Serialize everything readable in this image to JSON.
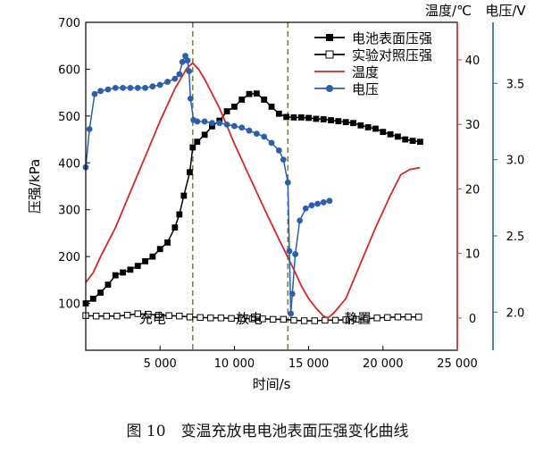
{
  "chart_data": {
    "type": "line",
    "caption": "图 10　变温充放电电池表面压强变化曲线",
    "xlabel": "时间/s",
    "xlim": [
      0,
      25000
    ],
    "x_ticks": [
      5000,
      10000,
      15000,
      20000,
      25000
    ],
    "x_tick_labels": [
      "5 000",
      "10 000",
      "15 000",
      "20 000",
      "25 000"
    ],
    "y_left": {
      "label": "压强/kPa",
      "lim": [
        0,
        700
      ],
      "ticks": [
        100,
        200,
        300,
        400,
        500,
        600,
        700
      ],
      "color": "#000000"
    },
    "y_temp": {
      "label": "温度/℃",
      "lim": [
        -5,
        45.8
      ],
      "ticks": [
        0,
        10,
        20,
        30,
        40
      ],
      "color": "#d62728"
    },
    "y_volt": {
      "label": "电压/V",
      "lim": [
        1.75,
        3.9
      ],
      "ticks": [
        2.0,
        2.5,
        3.0,
        3.5
      ],
      "tick_labels": [
        "2.0",
        "2.5",
        "3.0",
        "3.5"
      ],
      "color": "#2b5fad"
    },
    "legend_position": "top-right",
    "series": [
      {
        "name": "电池表面压强",
        "axis": "pressure",
        "color": "#000000",
        "marker": "filled-square",
        "x": [
          0,
          500,
          1000,
          1500,
          2000,
          2500,
          3000,
          3500,
          4000,
          4500,
          5000,
          5500,
          6000,
          6300,
          6600,
          7000,
          7200,
          7500,
          8000,
          8500,
          9000,
          9500,
          10000,
          10500,
          11000,
          11500,
          12000,
          12500,
          13000,
          13500,
          14000,
          14500,
          15000,
          15500,
          16000,
          16500,
          17000,
          17500,
          18000,
          18500,
          19000,
          19500,
          20000,
          20500,
          21000,
          21500,
          22000,
          22500
        ],
        "y": [
          100,
          110,
          123,
          140,
          160,
          166,
          172,
          180,
          190,
          200,
          216,
          230,
          262,
          290,
          330,
          380,
          433,
          445,
          460,
          478,
          490,
          510,
          520,
          535,
          547,
          548,
          535,
          520,
          505,
          498,
          497,
          497,
          496,
          494,
          493,
          491,
          489,
          487,
          485,
          480,
          476,
          473,
          466,
          461,
          456,
          450,
          447,
          445
        ]
      },
      {
        "name": "实验对照压强",
        "axis": "pressure",
        "color": "#000000",
        "marker": "hollow-square",
        "x": [
          0,
          700,
          1400,
          2100,
          2800,
          3500,
          4200,
          4900,
          5600,
          6300,
          7000,
          7700,
          8400,
          9100,
          9800,
          10500,
          11200,
          11900,
          12600,
          13300,
          14000,
          14700,
          15400,
          16100,
          16800,
          17500,
          18200,
          18900,
          19600,
          20300,
          21000,
          21700,
          22400
        ],
        "y": [
          74,
          73,
          73,
          73,
          75,
          78,
          77,
          75,
          74,
          73,
          71,
          70,
          69,
          69,
          68,
          68,
          67,
          67,
          66,
          66,
          64,
          63,
          63,
          64,
          64,
          65,
          66,
          67,
          69,
          70,
          71,
          71,
          71
        ]
      },
      {
        "name": "温度",
        "axis": "temperature",
        "color": "#d62728",
        "marker": "none",
        "x": [
          0,
          500,
          1000,
          2000,
          3000,
          4000,
          5000,
          6000,
          6800,
          7200,
          7600,
          8000,
          9000,
          10000,
          11000,
          12000,
          13000,
          14000,
          14500,
          15000,
          15500,
          16000,
          16300,
          16700,
          17500,
          18500,
          19500,
          20500,
          21200,
          21800,
          22500
        ],
        "y": [
          5.5,
          7.0,
          9.5,
          14,
          19.5,
          25,
          30.5,
          35.5,
          38.7,
          39.5,
          38.5,
          37,
          32.5,
          27,
          22,
          17,
          12.2,
          7.5,
          5.0,
          3.0,
          1.5,
          0.3,
          0.0,
          0.8,
          3.0,
          8.5,
          14,
          19,
          22.2,
          23,
          23.3
        ]
      },
      {
        "name": "电压",
        "axis": "voltage",
        "color": "#2b5fad",
        "marker": "filled-circle",
        "x": [
          0,
          250,
          600,
          1000,
          1500,
          2000,
          2500,
          3000,
          3500,
          4000,
          4500,
          5000,
          5500,
          6000,
          6300,
          6500,
          6700,
          6850,
          6950,
          7050,
          7250,
          7500,
          8000,
          8500,
          9000,
          9500,
          10000,
          10500,
          11000,
          11500,
          12000,
          12500,
          13000,
          13300,
          13600,
          13700,
          13800,
          13900,
          14100,
          14400,
          14800,
          15200,
          15600,
          16000,
          16400
        ],
        "y": [
          2.95,
          3.2,
          3.43,
          3.45,
          3.46,
          3.47,
          3.47,
          3.47,
          3.47,
          3.47,
          3.48,
          3.49,
          3.51,
          3.53,
          3.56,
          3.64,
          3.68,
          3.65,
          3.58,
          3.4,
          3.26,
          3.25,
          3.25,
          3.24,
          3.24,
          3.23,
          3.22,
          3.21,
          3.19,
          3.17,
          3.15,
          3.11,
          3.06,
          3.0,
          2.85,
          2.4,
          1.99,
          2.12,
          2.38,
          2.6,
          2.68,
          2.7,
          2.71,
          2.72,
          2.73
        ]
      }
    ],
    "vlines": [
      7200,
      13600
    ],
    "annotations": [
      {
        "text": "充电",
        "x": 4500,
        "y": 70
      },
      {
        "text": "放电",
        "x": 11000,
        "y": 70
      },
      {
        "text": "静置",
        "x": 18300,
        "y": 70
      }
    ]
  }
}
